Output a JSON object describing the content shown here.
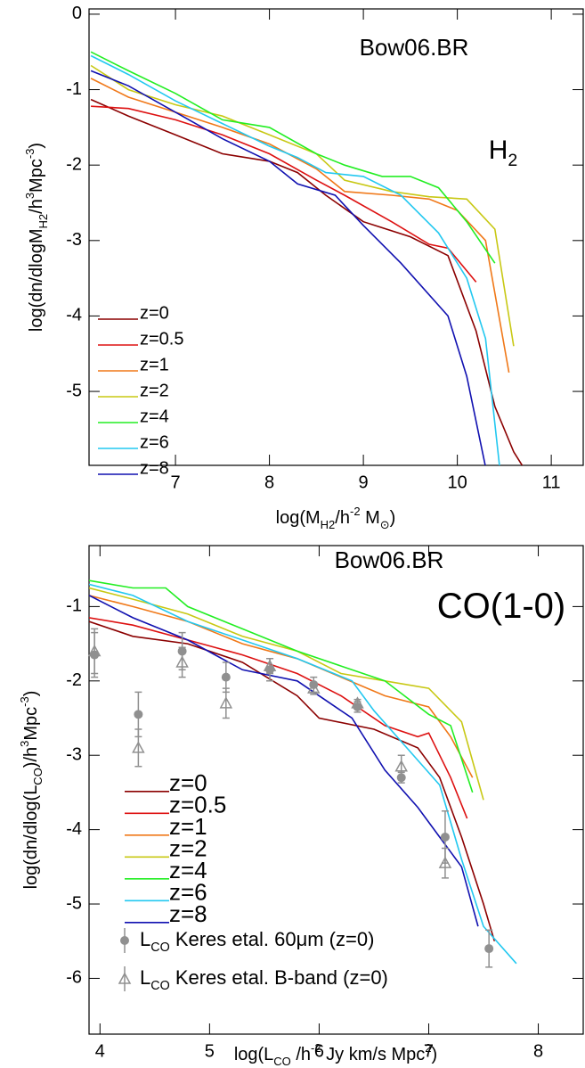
{
  "chart_data": [
    {
      "type": "line",
      "title": "Bow06.BR",
      "label": [
        {
          "text": "H",
          "pos": "base"
        },
        {
          "text": "2",
          "pos": "sub"
        }
      ],
      "xlabel": [
        {
          "text": "log(M",
          "pos": "base"
        },
        {
          "text": "H2",
          "pos": "sub"
        },
        {
          "text": "/h",
          "pos": "base"
        },
        {
          "text": "-2",
          "pos": "sup"
        },
        {
          "text": " M",
          "pos": "base"
        },
        {
          "text": "⊙",
          "pos": "sub"
        },
        {
          "text": ")",
          "pos": "base"
        }
      ],
      "ylabel": [
        {
          "text": "log(dn/dlogM",
          "pos": "base"
        },
        {
          "text": "H2",
          "pos": "sub"
        },
        {
          "text": "/h",
          "pos": "base"
        },
        {
          "text": "3",
          "pos": "sup"
        },
        {
          "text": "Mpc",
          "pos": "base"
        },
        {
          "text": "-3",
          "pos": "sup"
        },
        {
          "text": ")",
          "pos": "base"
        }
      ],
      "xlim": [
        6.08,
        11.34
      ],
      "ylim": [
        -5.98,
        0.07
      ],
      "xticks": [
        7,
        8,
        9,
        10,
        11
      ],
      "yticks": [
        0,
        -1,
        -2,
        -3,
        -4,
        -5
      ],
      "series": [
        {
          "name": "z=0",
          "color": "#8b0000",
          "x": [
            6.1,
            6.5,
            7.0,
            7.5,
            8.0,
            8.3,
            8.6,
            9.0,
            9.5,
            9.9,
            10.2,
            10.4,
            10.6,
            10.7
          ],
          "values": [
            -1.13,
            -1.35,
            -1.6,
            -1.85,
            -1.95,
            -2.1,
            -2.4,
            -2.75,
            -2.95,
            -3.2,
            -4.2,
            -5.2,
            -5.8,
            -6.0
          ]
        },
        {
          "name": "z=0.5",
          "color": "#dd1111",
          "x": [
            6.1,
            6.5,
            7.0,
            7.5,
            8.0,
            8.5,
            8.8,
            9.3,
            9.7,
            9.9,
            10.2
          ],
          "values": [
            -1.22,
            -1.25,
            -1.4,
            -1.6,
            -1.85,
            -2.2,
            -2.4,
            -2.75,
            -3.05,
            -3.1,
            -3.55
          ]
        },
        {
          "name": "z=1",
          "color": "#f07818",
          "x": [
            6.1,
            6.5,
            7.0,
            7.5,
            8.0,
            8.5,
            8.8,
            9.3,
            9.7,
            10.0,
            10.3,
            10.55
          ],
          "values": [
            -0.85,
            -1.1,
            -1.3,
            -1.5,
            -1.72,
            -2.05,
            -2.35,
            -2.4,
            -2.45,
            -2.6,
            -3.0,
            -4.75
          ]
        },
        {
          "name": "z=2",
          "color": "#c8c814",
          "x": [
            6.1,
            6.5,
            7.0,
            7.5,
            8.0,
            8.5,
            8.8,
            9.3,
            9.7,
            10.1,
            10.4,
            10.6
          ],
          "values": [
            -0.68,
            -1.0,
            -1.2,
            -1.35,
            -1.6,
            -1.85,
            -2.2,
            -2.35,
            -2.42,
            -2.45,
            -2.85,
            -4.4
          ]
        },
        {
          "name": "z=4",
          "color": "#22ee22",
          "x": [
            6.1,
            6.5,
            7.0,
            7.5,
            8.0,
            8.5,
            8.8,
            9.2,
            9.5,
            9.8,
            10.1,
            10.4
          ],
          "values": [
            -0.5,
            -0.75,
            -1.05,
            -1.4,
            -1.5,
            -1.85,
            -2.0,
            -2.15,
            -2.15,
            -2.3,
            -2.75,
            -3.3
          ]
        },
        {
          "name": "z=6",
          "color": "#22c8f0",
          "x": [
            6.1,
            6.5,
            7.0,
            7.5,
            8.0,
            8.3,
            8.6,
            9.0,
            9.4,
            9.8,
            10.1,
            10.3,
            10.45
          ],
          "values": [
            -0.55,
            -0.8,
            -1.15,
            -1.45,
            -1.75,
            -1.9,
            -2.1,
            -2.15,
            -2.4,
            -2.9,
            -3.5,
            -4.3,
            -6.0
          ]
        },
        {
          "name": "z=8",
          "color": "#1010b0",
          "x": [
            6.1,
            6.5,
            7.0,
            7.5,
            8.0,
            8.3,
            8.7,
            9.0,
            9.4,
            9.9,
            10.1,
            10.3
          ],
          "values": [
            -0.75,
            -0.95,
            -1.3,
            -1.65,
            -1.95,
            -2.25,
            -2.4,
            -2.8,
            -3.3,
            -4.0,
            -4.8,
            -6.0
          ]
        }
      ]
    },
    {
      "type": "line",
      "title": "Bow06.BR",
      "label": [
        {
          "text": "CO(1-0)",
          "pos": "base"
        }
      ],
      "xlabel": [
        {
          "text": "log(L",
          "pos": "base"
        },
        {
          "text": "CO",
          "pos": "sub"
        },
        {
          "text": " /h",
          "pos": "base"
        },
        {
          "text": "-2",
          "pos": "sup"
        },
        {
          "text": " Jy km/s Mpc",
          "pos": "base"
        },
        {
          "text": "2",
          "pos": "sup"
        },
        {
          "text": ")",
          "pos": "base"
        }
      ],
      "ylabel": [
        {
          "text": "log(dn/dlog(L",
          "pos": "base"
        },
        {
          "text": "CO",
          "pos": "sub"
        },
        {
          "text": ")/h",
          "pos": "base"
        },
        {
          "text": "3",
          "pos": "sup"
        },
        {
          "text": "Mpc",
          "pos": "base"
        },
        {
          "text": "-3",
          "pos": "sup"
        },
        {
          "text": ")",
          "pos": "base"
        }
      ],
      "xlim": [
        3.9,
        8.41
      ],
      "ylim": [
        -6.75,
        -0.18
      ],
      "xticks": [
        4,
        5,
        6,
        7,
        8
      ],
      "yticks": [
        -1,
        -2,
        -3,
        -4,
        -5,
        -6
      ],
      "series": [
        {
          "name": "z=0",
          "color": "#8b0000",
          "x": [
            3.9,
            4.3,
            4.8,
            5.3,
            5.8,
            6.0,
            6.5,
            6.9,
            7.1,
            7.3,
            7.5,
            7.6
          ],
          "values": [
            -1.2,
            -1.4,
            -1.5,
            -1.75,
            -2.2,
            -2.5,
            -2.65,
            -2.9,
            -3.3,
            -4.1,
            -5.0,
            -5.5
          ]
        },
        {
          "name": "z=0.5",
          "color": "#dd1111",
          "x": [
            3.9,
            4.3,
            4.8,
            5.3,
            5.8,
            6.2,
            6.6,
            6.9,
            7.0,
            7.2,
            7.35
          ],
          "values": [
            -1.15,
            -1.25,
            -1.45,
            -1.65,
            -1.9,
            -2.2,
            -2.6,
            -2.75,
            -2.7,
            -3.3,
            -3.85
          ]
        },
        {
          "name": "z=1",
          "color": "#f07818",
          "x": [
            3.9,
            4.3,
            4.8,
            5.3,
            5.8,
            6.2,
            6.6,
            7.0,
            7.2,
            7.4
          ],
          "values": [
            -0.85,
            -1.0,
            -1.2,
            -1.5,
            -1.7,
            -1.95,
            -2.2,
            -2.35,
            -2.75,
            -3.3
          ]
        },
        {
          "name": "z=2",
          "color": "#c8c814",
          "x": [
            3.9,
            4.3,
            4.8,
            5.3,
            5.8,
            6.2,
            6.6,
            7.0,
            7.3,
            7.5
          ],
          "values": [
            -0.75,
            -0.9,
            -1.1,
            -1.4,
            -1.6,
            -1.9,
            -2.0,
            -2.1,
            -2.55,
            -3.6
          ]
        },
        {
          "name": "z=4",
          "color": "#22ee22",
          "x": [
            3.9,
            4.3,
            4.6,
            4.8,
            5.3,
            5.8,
            6.2,
            6.6,
            7.0,
            7.2,
            7.4
          ],
          "values": [
            -0.65,
            -0.75,
            -0.75,
            -1.0,
            -1.3,
            -1.6,
            -1.8,
            -2.0,
            -2.45,
            -2.6,
            -3.5
          ]
        },
        {
          "name": "z=6",
          "color": "#22c8f0",
          "x": [
            3.9,
            4.3,
            4.8,
            5.3,
            5.8,
            6.3,
            6.5,
            6.8,
            7.1,
            7.3,
            7.5,
            7.8
          ],
          "values": [
            -0.7,
            -0.85,
            -1.2,
            -1.45,
            -1.7,
            -2.0,
            -2.4,
            -2.9,
            -3.4,
            -4.4,
            -5.3,
            -5.8
          ]
        },
        {
          "name": "z=8",
          "color": "#1010b0",
          "x": [
            3.9,
            4.3,
            4.8,
            5.3,
            5.8,
            6.3,
            6.6,
            6.9,
            7.1,
            7.3,
            7.45
          ],
          "values": [
            -0.85,
            -1.15,
            -1.45,
            -1.85,
            -2.0,
            -2.5,
            -3.2,
            -3.7,
            -4.1,
            -4.5,
            -5.3
          ]
        }
      ],
      "observations": [
        {
          "name": [
            {
              "text": "L",
              "pos": "base"
            },
            {
              "text": "CO",
              "pos": "sub"
            },
            {
              "text": " Keres etal. 60μm (z=0)",
              "pos": "base"
            }
          ],
          "marker": "circle",
          "color": "#909090",
          "x": [
            3.95,
            4.35,
            4.75,
            5.15,
            5.55,
            5.95,
            6.35,
            6.75,
            7.15,
            7.55
          ],
          "values": [
            -1.65,
            -2.45,
            -1.6,
            -1.95,
            -1.85,
            -2.05,
            -2.35,
            -3.3,
            -4.1,
            -5.6
          ],
          "errors": [
            0.3,
            0.3,
            0.25,
            0.2,
            0.15,
            0.1,
            0.07,
            0.07,
            0.35,
            0.25
          ]
        },
        {
          "name": [
            {
              "text": "L",
              "pos": "base"
            },
            {
              "text": "CO",
              "pos": "sub"
            },
            {
              "text": " Keres etal. B-band (z=0)",
              "pos": "base"
            }
          ],
          "marker": "triangle",
          "color": "#909090",
          "x": [
            3.95,
            4.35,
            4.75,
            5.15,
            5.55,
            5.95,
            6.35,
            6.75,
            7.15
          ],
          "values": [
            -1.6,
            -2.9,
            -1.75,
            -2.3,
            -1.8,
            -2.1,
            -2.3,
            -3.15,
            -4.45
          ],
          "errors": [
            0.3,
            0.25,
            0.2,
            0.2,
            0.1,
            0.08,
            0.05,
            0.15,
            0.2
          ]
        }
      ]
    }
  ]
}
